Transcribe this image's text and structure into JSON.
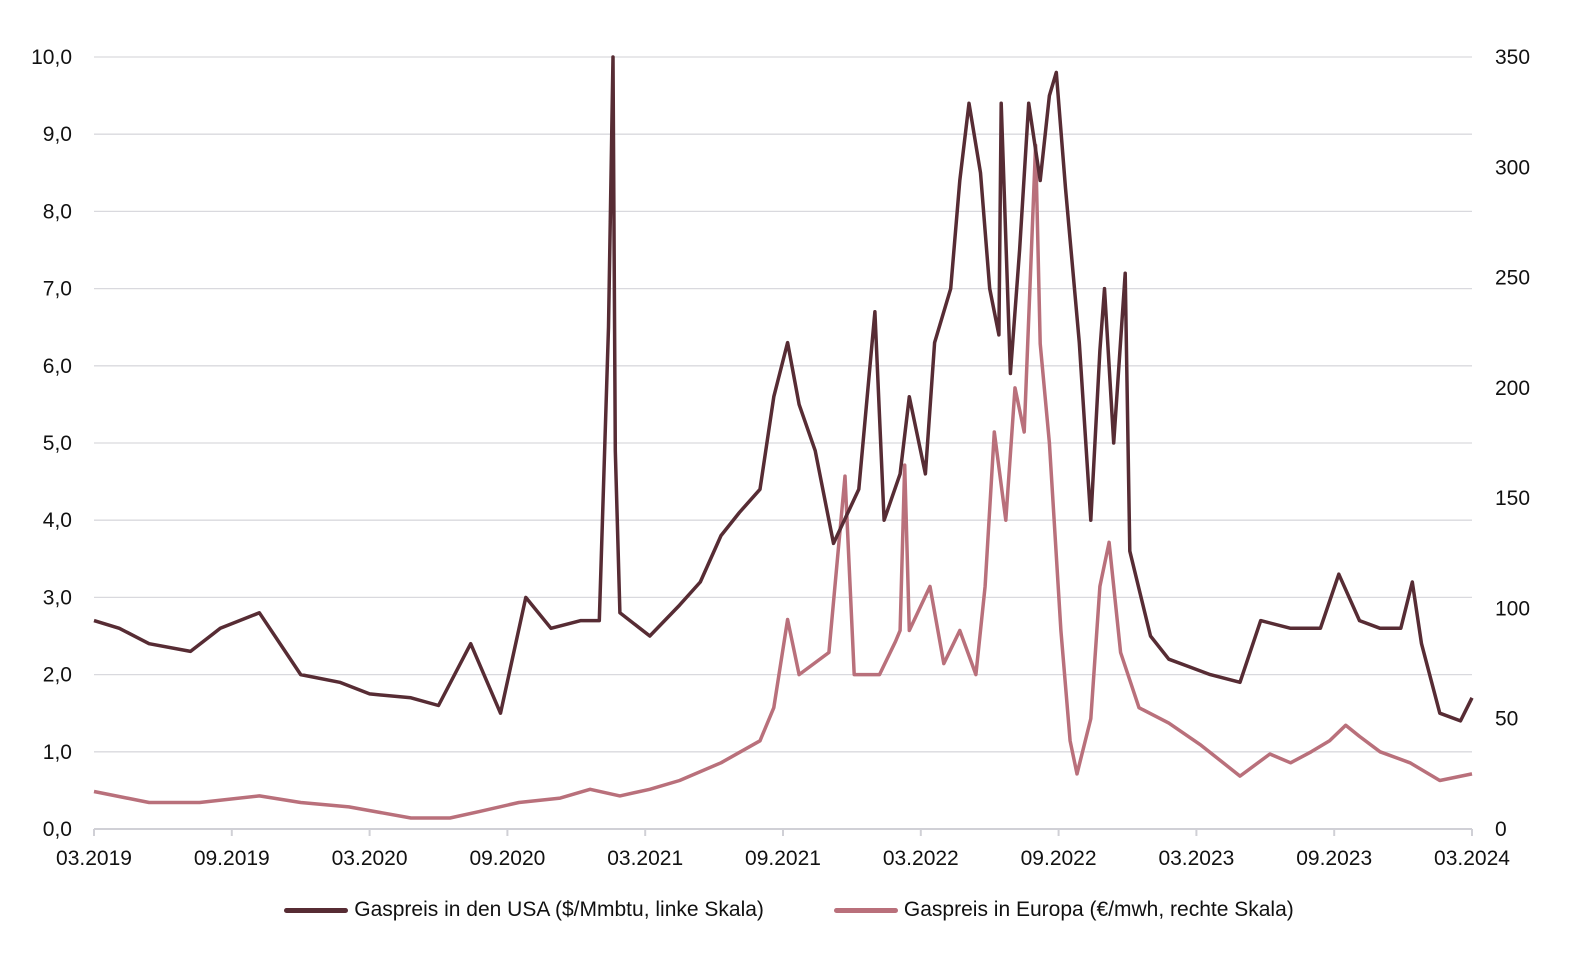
{
  "chart_data": {
    "type": "line",
    "title": "",
    "x_unit": "months since 03.2019",
    "xlim": [
      0,
      60
    ],
    "x_ticks": [
      0,
      6,
      12,
      18,
      24,
      30,
      36,
      42,
      48,
      54,
      60
    ],
    "x_tick_labels": [
      "03.2019",
      "09.2019",
      "03.2020",
      "09.2020",
      "03.2021",
      "09.2021",
      "03.2022",
      "09.2022",
      "03.2023",
      "09.2023",
      "03.2024"
    ],
    "y_left": {
      "ylim": [
        0,
        10
      ],
      "ticks": [
        0,
        1,
        2,
        3,
        4,
        5,
        6,
        7,
        8,
        9,
        10
      ],
      "tick_labels": [
        "0,0",
        "1,0",
        "2,0",
        "3,0",
        "4,0",
        "5,0",
        "6,0",
        "7,0",
        "8,0",
        "9,0",
        "10,0"
      ]
    },
    "y_right": {
      "ylim": [
        0,
        350
      ],
      "ticks": [
        0,
        50,
        100,
        150,
        200,
        250,
        300,
        350
      ],
      "tick_labels": [
        "0",
        "50",
        "100",
        "150",
        "200",
        "250",
        "300",
        "350"
      ]
    },
    "grid": true,
    "legend_position": "bottom",
    "series": [
      {
        "name": "Gaspreis in den USA ($/Mmbtu, linke Skala)",
        "axis": "left",
        "color": "#572c34",
        "points": [
          [
            0,
            2.7
          ],
          [
            1.1,
            2.6
          ],
          [
            2.4,
            2.4
          ],
          [
            4.2,
            2.3
          ],
          [
            5.5,
            2.6
          ],
          [
            7.2,
            2.8
          ],
          [
            9,
            2.0
          ],
          [
            10.7,
            1.9
          ],
          [
            12,
            1.75
          ],
          [
            13.8,
            1.7
          ],
          [
            15,
            1.6
          ],
          [
            16.4,
            2.4
          ],
          [
            17.7,
            1.5
          ],
          [
            18.8,
            3.0
          ],
          [
            19.9,
            2.6
          ],
          [
            21.2,
            2.7
          ],
          [
            22,
            2.7
          ],
          [
            22.4,
            6.5
          ],
          [
            22.6,
            10
          ],
          [
            22.7,
            4.9
          ],
          [
            22.9,
            2.8
          ],
          [
            24.2,
            2.5
          ],
          [
            25.5,
            2.9
          ],
          [
            26.4,
            3.2
          ],
          [
            27.3,
            3.8
          ],
          [
            28.1,
            4.1
          ],
          [
            29,
            4.4
          ],
          [
            29.6,
            5.6
          ],
          [
            30.2,
            6.3
          ],
          [
            30.7,
            5.5
          ],
          [
            31.4,
            4.9
          ],
          [
            32.2,
            3.7
          ],
          [
            33.3,
            4.4
          ],
          [
            34,
            6.7
          ],
          [
            34.4,
            4.0
          ],
          [
            35.1,
            4.6
          ],
          [
            35.5,
            5.6
          ],
          [
            36.2,
            4.6
          ],
          [
            36.6,
            6.3
          ],
          [
            37.3,
            7.0
          ],
          [
            37.7,
            8.4
          ],
          [
            38.1,
            9.4
          ],
          [
            38.6,
            8.5
          ],
          [
            39,
            7.0
          ],
          [
            39.4,
            6.4
          ],
          [
            39.5,
            9.4
          ],
          [
            39.9,
            5.9
          ],
          [
            40.3,
            7.5
          ],
          [
            40.7,
            9.4
          ],
          [
            41.2,
            8.4
          ],
          [
            41.6,
            9.5
          ],
          [
            41.9,
            9.8
          ],
          [
            42.3,
            8.3
          ],
          [
            42.9,
            6.3
          ],
          [
            43.4,
            4.0
          ],
          [
            43.8,
            6.2
          ],
          [
            44,
            7.0
          ],
          [
            44.4,
            5.0
          ],
          [
            44.9,
            7.2
          ],
          [
            45.1,
            3.6
          ],
          [
            46,
            2.5
          ],
          [
            46.8,
            2.2
          ],
          [
            47.7,
            2.1
          ],
          [
            48.6,
            2.0
          ],
          [
            49.9,
            1.9
          ],
          [
            50.8,
            2.7
          ],
          [
            52.1,
            2.6
          ],
          [
            53.4,
            2.6
          ],
          [
            54.2,
            3.3
          ],
          [
            55.1,
            2.7
          ],
          [
            56,
            2.6
          ],
          [
            56.9,
            2.6
          ],
          [
            57.4,
            3.2
          ],
          [
            57.8,
            2.4
          ],
          [
            58.6,
            1.5
          ],
          [
            59.5,
            1.4
          ],
          [
            60,
            1.7
          ]
        ]
      },
      {
        "name": "Gaspreis in Europa (€/mwh, rechte Skala)",
        "axis": "right",
        "color": "#b9707b",
        "points": [
          [
            0,
            17
          ],
          [
            2.4,
            12
          ],
          [
            4.6,
            12
          ],
          [
            7.2,
            15
          ],
          [
            9,
            12
          ],
          [
            11.1,
            10
          ],
          [
            13.8,
            5
          ],
          [
            15.5,
            5
          ],
          [
            16.8,
            8
          ],
          [
            18.5,
            12
          ],
          [
            20.3,
            14
          ],
          [
            21.6,
            18
          ],
          [
            22.9,
            15
          ],
          [
            24.2,
            18
          ],
          [
            25.5,
            22
          ],
          [
            27.3,
            30
          ],
          [
            29,
            40
          ],
          [
            29.6,
            55
          ],
          [
            30.2,
            95
          ],
          [
            30.7,
            70
          ],
          [
            32,
            80
          ],
          [
            32.7,
            160
          ],
          [
            33.1,
            70
          ],
          [
            34.2,
            70
          ],
          [
            34.9,
            85
          ],
          [
            35.1,
            90
          ],
          [
            35.3,
            165
          ],
          [
            35.5,
            90
          ],
          [
            36.4,
            110
          ],
          [
            37,
            75
          ],
          [
            37.7,
            90
          ],
          [
            38.4,
            70
          ],
          [
            38.8,
            110
          ],
          [
            39.2,
            180
          ],
          [
            39.7,
            140
          ],
          [
            40.1,
            200
          ],
          [
            40.5,
            180
          ],
          [
            41,
            310
          ],
          [
            41.2,
            220
          ],
          [
            41.6,
            175
          ],
          [
            42.1,
            90
          ],
          [
            42.5,
            40
          ],
          [
            42.8,
            25
          ],
          [
            43.4,
            50
          ],
          [
            43.8,
            110
          ],
          [
            44.2,
            130
          ],
          [
            44.7,
            80
          ],
          [
            45.5,
            55
          ],
          [
            46.8,
            48
          ],
          [
            48.2,
            38
          ],
          [
            49.9,
            24
          ],
          [
            51.2,
            34
          ],
          [
            52.1,
            30
          ],
          [
            53,
            35
          ],
          [
            53.8,
            40
          ],
          [
            54.5,
            47
          ],
          [
            55.1,
            42
          ],
          [
            56,
            35
          ],
          [
            57.3,
            30
          ],
          [
            58.6,
            22
          ],
          [
            60,
            25
          ]
        ]
      }
    ]
  }
}
